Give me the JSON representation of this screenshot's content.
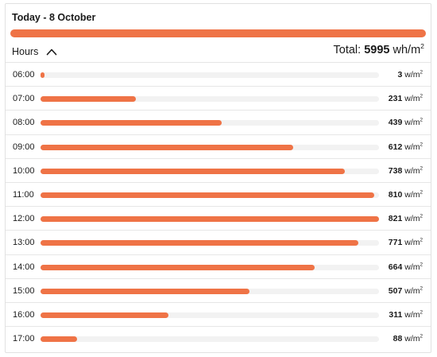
{
  "header": {
    "title": "Today - 8 October",
    "summary_bar_color": "#ef7346"
  },
  "toggle": {
    "label": "Hours",
    "icon": "chevron-up-icon"
  },
  "total": {
    "label": "Total:",
    "value": "5995",
    "unit": "wh/m",
    "unit_sup": "2"
  },
  "unit": {
    "text": "w/m",
    "sup": "2"
  },
  "accent_color": "#ef7346",
  "rows": [
    {
      "time": "06:00",
      "value": "3",
      "level": 3
    },
    {
      "time": "07:00",
      "value": "231",
      "level": 231
    },
    {
      "time": "08:00",
      "value": "439",
      "level": 439
    },
    {
      "time": "09:00",
      "value": "612",
      "level": 612
    },
    {
      "time": "10:00",
      "value": "738",
      "level": 738
    },
    {
      "time": "11:00",
      "value": "810",
      "level": 810
    },
    {
      "time": "12:00",
      "value": "821",
      "level": 821
    },
    {
      "time": "13:00",
      "value": "771",
      "level": 771
    },
    {
      "time": "14:00",
      "value": "664",
      "level": 664
    },
    {
      "time": "15:00",
      "value": "507",
      "level": 507
    },
    {
      "time": "16:00",
      "value": "311",
      "level": 311
    },
    {
      "time": "17:00",
      "value": "88",
      "level": 88
    }
  ],
  "scale_max": 821
}
